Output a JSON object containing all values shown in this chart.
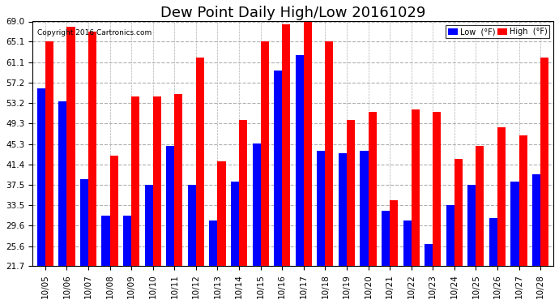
{
  "title": "Dew Point Daily High/Low 20161029",
  "copyright": "Copyright 2016 Cartronics.com",
  "legend_low_label": "Low  (°F)",
  "legend_high_label": "High  (°F)",
  "categories": [
    "10/05",
    "10/06",
    "10/07",
    "10/08",
    "10/09",
    "10/10",
    "10/11",
    "10/12",
    "10/13",
    "10/14",
    "10/15",
    "10/16",
    "10/17",
    "10/18",
    "10/19",
    "10/20",
    "10/21",
    "10/22",
    "10/23",
    "10/24",
    "10/25",
    "10/26",
    "10/27",
    "10/28"
  ],
  "low_values": [
    56.0,
    53.5,
    38.5,
    31.5,
    31.5,
    37.5,
    45.0,
    37.5,
    30.5,
    38.0,
    45.5,
    59.5,
    62.5,
    44.0,
    43.5,
    44.0,
    32.5,
    30.5,
    26.0,
    33.5,
    37.5,
    31.0,
    38.0,
    39.5
  ],
  "high_values": [
    65.1,
    68.0,
    67.0,
    43.0,
    54.5,
    54.5,
    55.0,
    62.0,
    42.0,
    50.0,
    65.1,
    68.5,
    69.0,
    65.1,
    50.0,
    51.5,
    34.5,
    52.0,
    51.5,
    42.5,
    45.0,
    48.5,
    47.0,
    62.0
  ],
  "low_color": "#0000ff",
  "high_color": "#ff0000",
  "bg_color": "#ffffff",
  "plot_bg_color": "#ffffff",
  "grid_color": "#b0b0b0",
  "yticks": [
    21.7,
    25.6,
    29.6,
    33.5,
    37.5,
    41.4,
    45.3,
    49.3,
    53.2,
    57.2,
    61.1,
    65.1,
    69.0
  ],
  "ymin": 21.7,
  "ymax": 69.0,
  "title_fontsize": 13,
  "tick_fontsize": 7.5,
  "bar_width": 0.38
}
